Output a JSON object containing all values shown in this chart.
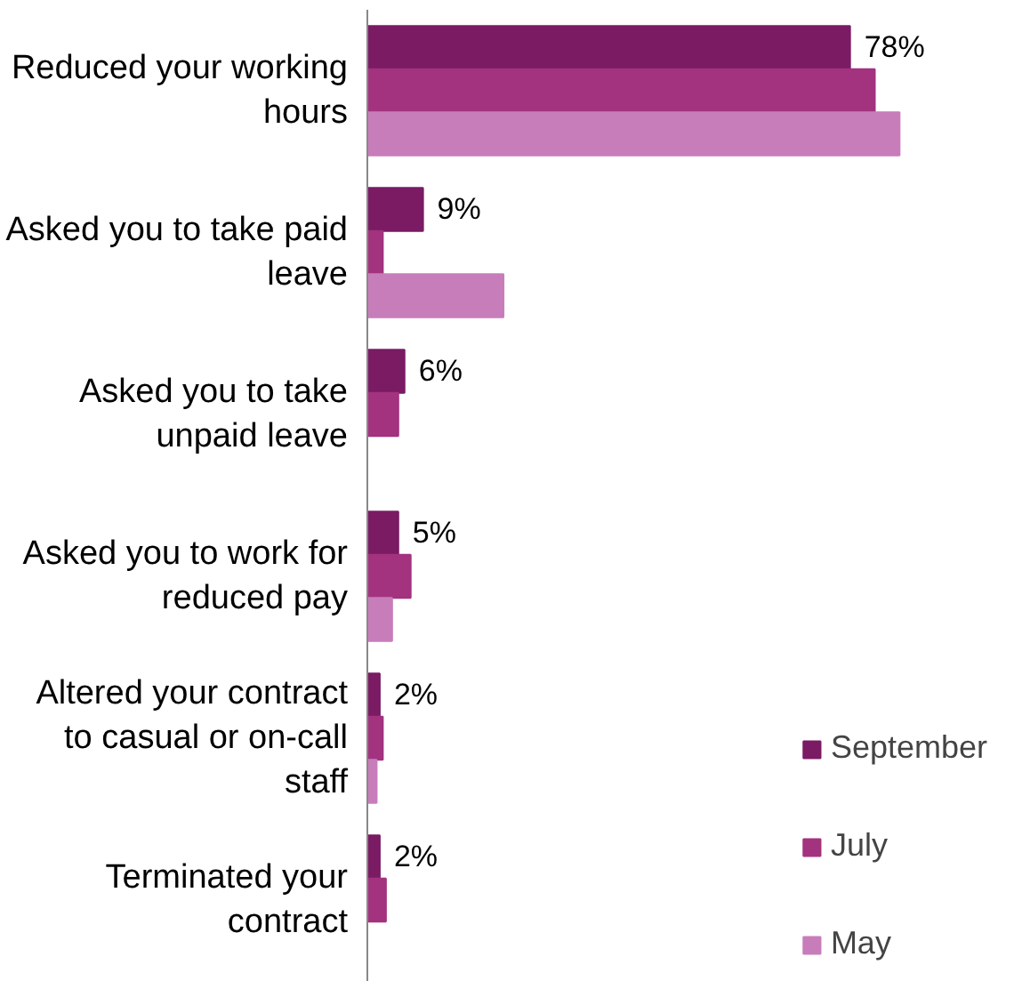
{
  "chart_data": {
    "type": "bar",
    "orientation": "horizontal",
    "categories": [
      "Reduced your working hours",
      "Asked you to take paid leave",
      "Asked you to take unpaid leave",
      "Asked you to work for reduced pay",
      "Altered your contract to casual or on-call staff",
      "Terminated your contract"
    ],
    "series": [
      {
        "name": "September",
        "color": "#7a1b64",
        "values": [
          78,
          9,
          6,
          5,
          2,
          2
        ],
        "value_labels": [
          "78%",
          "9%",
          "6%",
          "5%",
          "2%",
          "2%"
        ]
      },
      {
        "name": "July",
        "color": "#a3327f",
        "values": [
          82,
          2.5,
          5,
          7,
          2.5,
          3
        ]
      },
      {
        "name": "May",
        "color": "#c87dbb",
        "values": [
          86,
          22,
          null,
          4,
          1.5,
          null
        ]
      }
    ],
    "grid": false,
    "legend": "bottom right",
    "tick_labels": "y"
  }
}
